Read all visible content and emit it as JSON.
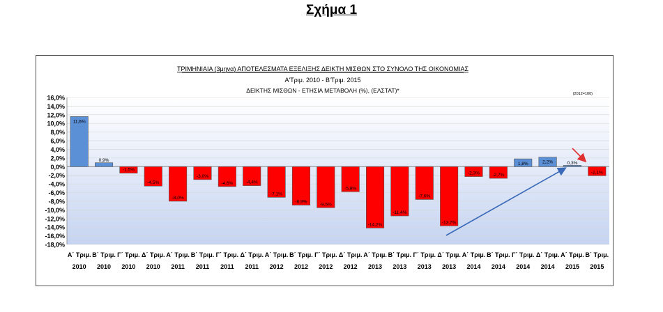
{
  "figure_title": "Σχήμα 1",
  "chart_data": {
    "type": "bar",
    "title": "ΤΡΙΜΗΝΙΑΙΑ (3μηνα) ΑΠΟΤΕΛΕΣΜΑΤΑ ΕΞΕΛΙΞΗΣ ΔΕΙΚΤΗ ΜΙΣΘΩΝ ΣΤΟ ΣΥΝΟΛΟ ΤΗΣ ΟΙΚΟΝΟΜΙΑΣ",
    "subtitle": "Α'Τριμ. 2010 - Β'Τριμ. 2015",
    "subtitle2": "ΔΕΙΚΤΗΣ ΜΙΣΘΩΝ - ΕΤΗΣΙΑ ΜΕΤΑΒΟΛΗ (%), (ΕΛΣΤΑΤ)*",
    "base_note": "(2012=100)",
    "xlabel": "",
    "ylabel": "",
    "ylim": [
      -18,
      16
    ],
    "yticks": [
      "16,0%",
      "14,0%",
      "12,0%",
      "10,0%",
      "8,0%",
      "6,0%",
      "4,0%",
      "2,0%",
      "0,0%",
      "-2,0%",
      "-4,0%",
      "-6,0%",
      "-8,0%",
      "-10,0%",
      "-12,0%",
      "-14,0%",
      "-16,0%",
      "-18,0%"
    ],
    "categories": [
      [
        "Α΄ Τριμ.",
        "2010"
      ],
      [
        "Β΄ Τριμ.",
        "2010"
      ],
      [
        "Γ΄ Τριμ.",
        "2010"
      ],
      [
        "Δ΄ Τριμ.",
        "2010"
      ],
      [
        "Α΄ Τριμ.",
        "2011"
      ],
      [
        "Β΄ Τριμ.",
        "2011"
      ],
      [
        "Γ΄ Τριμ.",
        "2011"
      ],
      [
        "Δ΄ Τριμ.",
        "2011"
      ],
      [
        "Α΄ Τριμ.",
        "2012"
      ],
      [
        "Β΄ Τριμ.",
        "2012"
      ],
      [
        "Γ΄ Τριμ.",
        "2012"
      ],
      [
        "Δ΄ Τριμ.",
        "2012"
      ],
      [
        "Α΄ Τριμ.",
        "2013"
      ],
      [
        "Β΄ Τριμ.",
        "2013"
      ],
      [
        "Γ΄ Τριμ.",
        "2013"
      ],
      [
        "Δ΄ Τριμ.",
        "2013"
      ],
      [
        "Α΄ Τριμ.",
        "2014"
      ],
      [
        "Β΄ Τριμ.",
        "2014"
      ],
      [
        "Γ΄ Τριμ.",
        "2014"
      ],
      [
        "Δ΄ Τριμ.",
        "2014"
      ],
      [
        "Α΄ Τριμ.",
        "2015"
      ],
      [
        "Β΄ Τριμ.",
        "2015"
      ]
    ],
    "values": [
      11.6,
      0.9,
      -1.5,
      -4.5,
      -8.0,
      -3.0,
      -4.6,
      -4.4,
      -7.1,
      -8.9,
      -9.5,
      -5.8,
      -14.2,
      -11.4,
      -7.6,
      -13.7,
      -2.3,
      -2.7,
      1.8,
      2.2,
      0.3,
      -2.1
    ],
    "value_labels": [
      "11,6%",
      "0,9%",
      "-1,5%",
      "-4,5%",
      "-8,0%",
      "-3,0%",
      "-4,6%",
      "-4,4%",
      "-7,1%",
      "-8,9%",
      "-9,5%",
      "-5,8%",
      "-14,2%",
      "-11,4%",
      "-7,6%",
      "-13,7%",
      "-2,3%",
      "-2,7%",
      "1,8%",
      "2,2%",
      "0,3%",
      "-2,1%"
    ],
    "colors": {
      "positive": "#5b8fd6",
      "negative": "#ff0000",
      "plot_top": "#ffffff",
      "plot_bottom": "#c6d4f1",
      "trend_arrow": "#3a6ab8",
      "red_arrow": "#e03030"
    },
    "grid": true,
    "legend": "none"
  }
}
